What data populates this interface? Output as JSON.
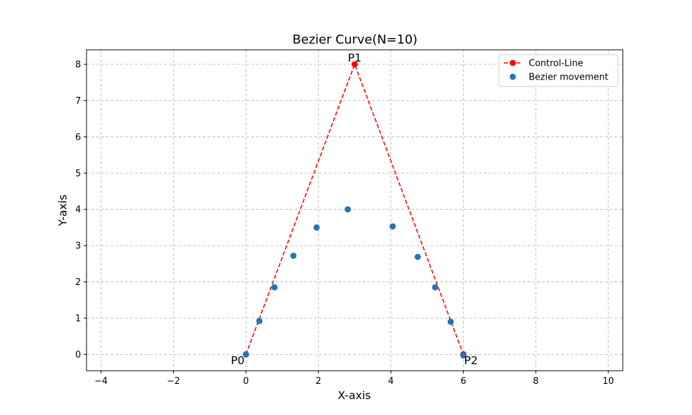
{
  "chart_data": {
    "type": "scatter",
    "title": "Bezier Curve(N=10)",
    "xlabel": "X-axis",
    "ylabel": "Y-axis",
    "xlim": [
      -4.4,
      10.4
    ],
    "ylim": [
      -0.45,
      8.4
    ],
    "xticks": [
      -4,
      -2,
      0,
      2,
      4,
      6,
      8,
      10
    ],
    "yticks": [
      0,
      1,
      2,
      3,
      4,
      5,
      6,
      7,
      8
    ],
    "xtick_labels": [
      "−4",
      "−2",
      "0",
      "2",
      "4",
      "6",
      "8",
      "10"
    ],
    "ytick_labels": [
      "0",
      "1",
      "2",
      "3",
      "4",
      "5",
      "6",
      "7",
      "8"
    ],
    "grid": true,
    "legend_position": "top-right",
    "series": [
      {
        "name": "Control-Line",
        "type": "line",
        "style": "dashed",
        "marker": "circle",
        "color": "#ff0000",
        "x": [
          0,
          3,
          6
        ],
        "y": [
          0,
          8,
          0
        ]
      },
      {
        "name": "Bezier movement",
        "type": "scatter",
        "color": "#1f77b4",
        "x": [
          0,
          0.37,
          0.79,
          1.31,
          1.95,
          2.81,
          4.05,
          4.74,
          5.22,
          5.65,
          6.0
        ],
        "y": [
          0,
          0.92,
          1.85,
          2.72,
          3.5,
          4.0,
          3.53,
          2.69,
          1.85,
          0.9,
          -0.03
        ]
      }
    ],
    "annotations": [
      {
        "text": "P0",
        "x": 0,
        "y": 0,
        "anchor": "bottom-left"
      },
      {
        "text": "P1",
        "x": 3,
        "y": 8,
        "anchor": "top-center"
      },
      {
        "text": "P2",
        "x": 6,
        "y": 0,
        "anchor": "bottom-right"
      }
    ]
  }
}
